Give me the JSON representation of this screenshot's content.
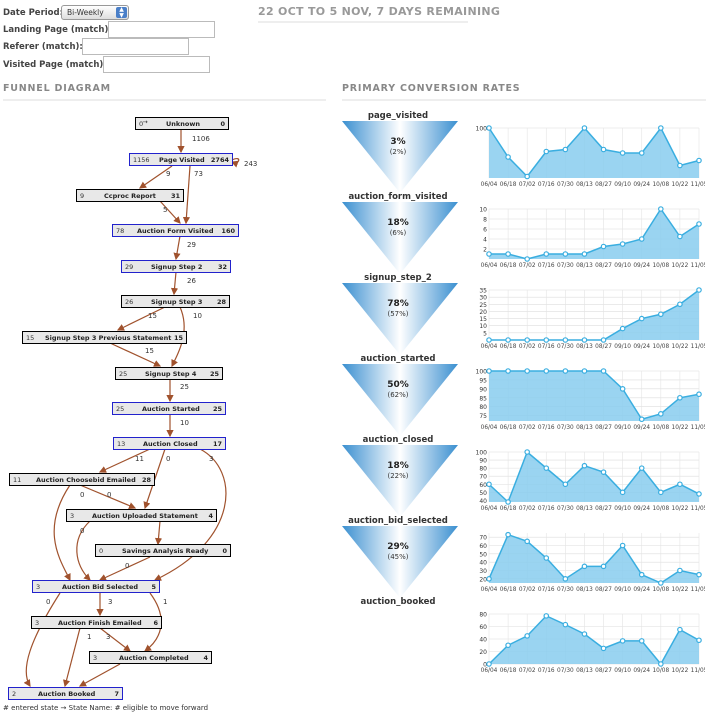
{
  "filters": {
    "date_period_label": "Date Period:",
    "date_period_value": "Bi-Weekly",
    "landing_label": "Landing Page (match):",
    "referer_label": "Referer (match):",
    "visited_label": "Visited Page (match):",
    "landing_value": "",
    "referer_value": "",
    "visited_value": ""
  },
  "period_text": "22 OCT TO 5 NOV, 7 DAYS REMAINING",
  "funnel": {
    "title": "FUNNEL DIAGRAM",
    "nodes": [
      {
        "entered": "0",
        "name": "Unknown",
        "eligible": "0",
        "blue": false
      },
      {
        "entered": "1156",
        "name": "Page Visited",
        "eligible": "2764",
        "blue": true
      },
      {
        "entered": "9",
        "name": "Ccproc Report",
        "eligible": "31",
        "blue": false
      },
      {
        "entered": "78",
        "name": "Auction Form Visited",
        "eligible": "160",
        "blue": true
      },
      {
        "entered": "29",
        "name": "Signup Step 2",
        "eligible": "32",
        "blue": true
      },
      {
        "entered": "26",
        "name": "Signup Step 3",
        "eligible": "28",
        "blue": false
      },
      {
        "entered": "15",
        "name": "Signup Step 3 Previous Statement",
        "eligible": "15",
        "blue": false
      },
      {
        "entered": "25",
        "name": "Signup Step 4",
        "eligible": "25",
        "blue": false
      },
      {
        "entered": "25",
        "name": "Auction Started",
        "eligible": "25",
        "blue": true
      },
      {
        "entered": "13",
        "name": "Auction Closed",
        "eligible": "17",
        "blue": true
      },
      {
        "entered": "11",
        "name": "Auction Choosebid Emailed",
        "eligible": "28",
        "blue": false
      },
      {
        "entered": "3",
        "name": "Auction Uploaded Statement",
        "eligible": "4",
        "blue": false
      },
      {
        "entered": "0",
        "name": "Savings Analysis Ready",
        "eligible": "0",
        "blue": false
      },
      {
        "entered": "3",
        "name": "Auction Bid Selected",
        "eligible": "5",
        "blue": true
      },
      {
        "entered": "3",
        "name": "Auction Finish Emailed",
        "eligible": "6",
        "blue": false
      },
      {
        "entered": "3",
        "name": "Auction Completed",
        "eligible": "4",
        "blue": false
      },
      {
        "entered": "2",
        "name": "Auction Booked",
        "eligible": "7",
        "blue": true
      }
    ],
    "edge_counts": [
      "1106",
      "243",
      "9",
      "73",
      "5",
      "29",
      "26",
      "15",
      "10",
      "15",
      "25",
      "10",
      "11",
      "0",
      "3",
      "0",
      "0",
      "0",
      "0",
      "3",
      "0",
      "1",
      "3",
      "1"
    ],
    "legend": "# entered state → State Name: # eligible to move forward"
  },
  "conversion": {
    "title": "PRIMARY CONVERSION RATES",
    "stages": [
      "page_visited",
      "auction_form_visited",
      "signup_step_2",
      "auction_started",
      "auction_closed",
      "auction_bid_selected",
      "auction_booked"
    ],
    "rates": [
      {
        "pct": "3%",
        "sub": "(2%)"
      },
      {
        "pct": "18%",
        "sub": "(6%)"
      },
      {
        "pct": "78%",
        "sub": "(57%)"
      },
      {
        "pct": "50%",
        "sub": "(62%)"
      },
      {
        "pct": "18%",
        "sub": "(22%)"
      },
      {
        "pct": "29%",
        "sub": "(45%)"
      }
    ]
  },
  "colors": {
    "accent": "#3aaee0",
    "fill": "#88ccee",
    "funnel_dark": "#3a8fd0",
    "box_blue_border": "#2222cc",
    "arrow": "#a0522d"
  },
  "chart_data": [
    {
      "type": "area",
      "x": [
        "06/04",
        "06/18",
        "07/02",
        "07/16",
        "07/30",
        "08/13",
        "08/27",
        "09/10",
        "09/24",
        "10/08",
        "10/22",
        "11/05"
      ],
      "values": [
        100,
        42,
        3,
        53,
        57,
        100,
        57,
        50,
        50,
        100,
        25,
        35
      ],
      "ylim": [
        0,
        100
      ],
      "yticks": [
        "100"
      ]
    },
    {
      "type": "area",
      "x": [
        "06/04",
        "06/18",
        "07/02",
        "07/16",
        "07/30",
        "08/13",
        "08/27",
        "09/10",
        "09/24",
        "10/08",
        "10/22",
        "11/05"
      ],
      "values": [
        1,
        1,
        0,
        1,
        1,
        1,
        2.5,
        3,
        4,
        10,
        4.5,
        7
      ],
      "ylim": [
        0,
        10
      ],
      "yticks": [
        "10",
        "8",
        "6",
        "4",
        "2"
      ]
    },
    {
      "type": "area",
      "x": [
        "06/04",
        "06/18",
        "07/02",
        "07/16",
        "07/30",
        "08/13",
        "08/27",
        "09/10",
        "09/24",
        "10/08",
        "10/22",
        "11/05"
      ],
      "values": [
        0,
        0,
        0,
        0,
        0,
        0,
        0,
        8,
        15,
        18,
        25,
        35
      ],
      "ylim": [
        0,
        35
      ],
      "yticks": [
        "35",
        "30",
        "25",
        "20",
        "15",
        "10",
        "5"
      ]
    },
    {
      "type": "area",
      "x": [
        "06/04",
        "06/18",
        "07/02",
        "07/16",
        "07/30",
        "08/13",
        "08/27",
        "09/10",
        "09/24",
        "10/08",
        "10/22",
        "11/05"
      ],
      "values": [
        100,
        100,
        100,
        100,
        100,
        100,
        100,
        90,
        73,
        76,
        85,
        87
      ],
      "ylim": [
        72,
        100
      ],
      "yticks": [
        "100",
        "95",
        "90",
        "85",
        "80",
        "75"
      ]
    },
    {
      "type": "area",
      "x": [
        "06/04",
        "06/18",
        "07/02",
        "07/16",
        "07/30",
        "08/13",
        "08/27",
        "09/10",
        "09/24",
        "10/08",
        "10/22",
        "11/05"
      ],
      "values": [
        60,
        38,
        100,
        80,
        60,
        83,
        75,
        50,
        80,
        50,
        60,
        48
      ],
      "ylim": [
        38,
        100
      ],
      "yticks": [
        "100",
        "90",
        "80",
        "70",
        "60",
        "50",
        "40"
      ]
    },
    {
      "type": "area",
      "x": [
        "06/04",
        "06/18",
        "07/02",
        "07/16",
        "07/30",
        "08/13",
        "08/27",
        "09/10",
        "09/24",
        "10/08",
        "10/22",
        "11/05"
      ],
      "values": [
        20,
        73,
        65,
        45,
        20,
        35,
        35,
        60,
        25,
        15,
        30,
        25
      ],
      "ylim": [
        15,
        75
      ],
      "yticks": [
        "70",
        "60",
        "50",
        "40",
        "30",
        "20"
      ]
    },
    {
      "type": "area",
      "x": [
        "06/04",
        "06/18",
        "07/02",
        "07/16",
        "07/30",
        "08/13",
        "08/27",
        "09/10",
        "09/24",
        "10/08",
        "10/22",
        "11/05"
      ],
      "values": [
        0,
        30,
        45,
        77,
        63,
        48,
        25,
        37,
        37,
        0,
        55,
        38
      ],
      "ylim": [
        0,
        80
      ],
      "yticks": [
        "80",
        "60",
        "40",
        "20",
        "0"
      ]
    }
  ]
}
